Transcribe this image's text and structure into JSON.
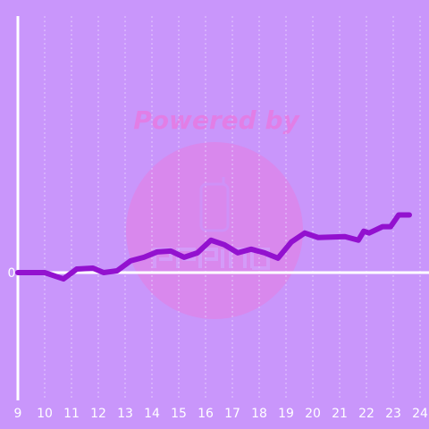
{
  "colors": {
    "background": "#c996fb",
    "line": "#9311cf",
    "axis": "#ffffff",
    "grid": "#e8d3ff",
    "watermark_text": "#e27ee6",
    "watermark_circle": "#df82e8",
    "label": "#ffffff"
  },
  "watermark": {
    "text": "Powered by"
  },
  "chart_data": {
    "type": "line",
    "title": "",
    "xlabel": "",
    "ylabel": "",
    "x_ticks": [
      "9",
      "10",
      "11",
      "12",
      "13",
      "14",
      "15",
      "16",
      "17",
      "18",
      "19",
      "20",
      "21",
      "22",
      "23",
      "24"
    ],
    "y_ticks": [
      "0"
    ],
    "xlim": [
      9,
      24
    ],
    "ylim": [
      -1.42,
      2.85
    ],
    "grid": "vertical dotted",
    "series": [
      {
        "x": [
          9.0,
          10.0,
          10.7,
          11.2,
          11.8,
          12.2,
          12.7,
          13.2,
          13.7,
          14.2,
          14.7,
          15.2,
          15.7,
          16.2,
          16.7,
          17.2,
          17.7,
          18.2,
          18.7,
          19.2,
          19.7,
          20.2,
          21.2,
          21.7,
          21.9,
          22.1,
          22.6,
          22.9,
          23.2,
          23.6
        ],
        "y": [
          0.0,
          0.0,
          -0.07,
          0.04,
          0.05,
          0.0,
          0.02,
          0.13,
          0.17,
          0.23,
          0.24,
          0.17,
          0.22,
          0.36,
          0.31,
          0.22,
          0.26,
          0.22,
          0.16,
          0.34,
          0.44,
          0.39,
          0.4,
          0.36,
          0.46,
          0.44,
          0.51,
          0.51,
          0.64,
          0.64
        ]
      }
    ]
  }
}
